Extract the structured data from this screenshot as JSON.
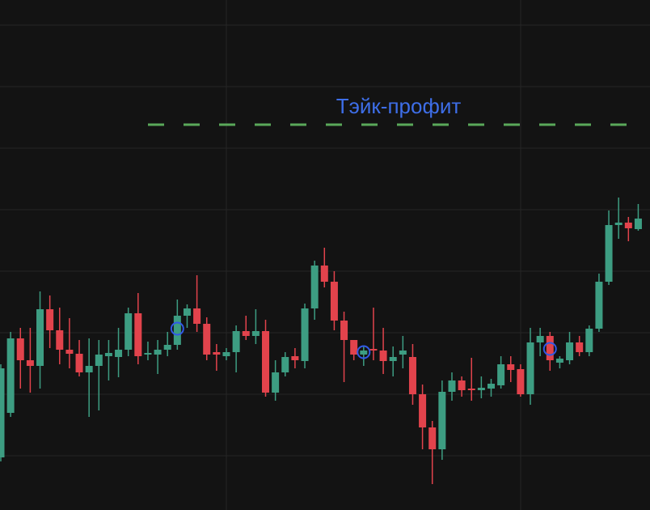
{
  "chart_data": {
    "type": "candlestick",
    "ylim": [
      0,
      630
    ],
    "yticks": [
      599,
      523,
      447,
      371,
      295,
      219,
      143,
      67
    ],
    "grid": true,
    "up_color": "#3d9d82",
    "down_color": "#e2434c",
    "open": [
      65,
      120,
      212,
      185,
      178,
      248,
      222,
      198,
      193,
      170,
      178,
      190,
      189,
      198,
      243,
      192,
      192,
      198,
      204,
      240,
      249,
      230,
      195,
      190,
      195,
      221,
      215,
      221,
      145,
      170,
      190,
      184,
      249,
      302,
      282,
      234,
      210,
      192,
      199,
      197,
      184,
      192,
      189,
      143,
      102,
      75,
      146,
      160,
      150,
      148,
      150,
      154,
      180,
      174,
      143,
      207,
      215,
      182,
      185,
      207,
      195,
      224,
      282,
      352,
      355,
      347
    ],
    "high": [
      180,
      220,
      225,
      225,
      270,
      265,
      250,
      237,
      210,
      212,
      210,
      210,
      225,
      250,
      268,
      208,
      210,
      220,
      260,
      254,
      290,
      238,
      205,
      200,
      228,
      240,
      248,
      235,
      185,
      195,
      200,
      255,
      308,
      324,
      295,
      245,
      210,
      202,
      250,
      225,
      202,
      215,
      205,
      155,
      110,
      160,
      170,
      165,
      188,
      165,
      162,
      190,
      190,
      180,
      225,
      225,
      220,
      190,
      220,
      215,
      228,
      292,
      370,
      386,
      362,
      378
    ],
    "low": [
      60,
      115,
      150,
      145,
      150,
      200,
      180,
      175,
      165,
      115,
      123,
      160,
      164,
      190,
      180,
      185,
      168,
      190,
      198,
      225,
      220,
      185,
      172,
      185,
      170,
      210,
      205,
      140,
      135,
      165,
      175,
      175,
      235,
      275,
      222,
      158,
      185,
      178,
      185,
      168,
      165,
      175,
      130,
      75,
      32,
      62,
      135,
      140,
      135,
      138,
      140,
      150,
      158,
      140,
      130,
      190,
      172,
      175,
      180,
      190,
      190,
      220,
      278,
      335,
      332,
      345
    ],
    "close": [
      175,
      212,
      185,
      178,
      248,
      222,
      198,
      193,
      170,
      178,
      192,
      194,
      198,
      243,
      190,
      194,
      198,
      204,
      240,
      249,
      230,
      192,
      192,
      195,
      221,
      215,
      221,
      145,
      170,
      189,
      185,
      249,
      302,
      282,
      234,
      210,
      192,
      197,
      197,
      184,
      189,
      197,
      143,
      102,
      75,
      146,
      160,
      148,
      148,
      151,
      156,
      180,
      173,
      143,
      207,
      215,
      185,
      187,
      207,
      195,
      224,
      282,
      352,
      355,
      348,
      360
    ],
    "markers": {
      "color": "#3159e6",
      "index": [
        18,
        37,
        56
      ],
      "values": [
        224,
        195,
        199
      ]
    },
    "take_profit": {
      "label": "Тэйк-профит",
      "value": 476,
      "color": "#5aa85a",
      "label_color": "#3e6ee8"
    }
  }
}
